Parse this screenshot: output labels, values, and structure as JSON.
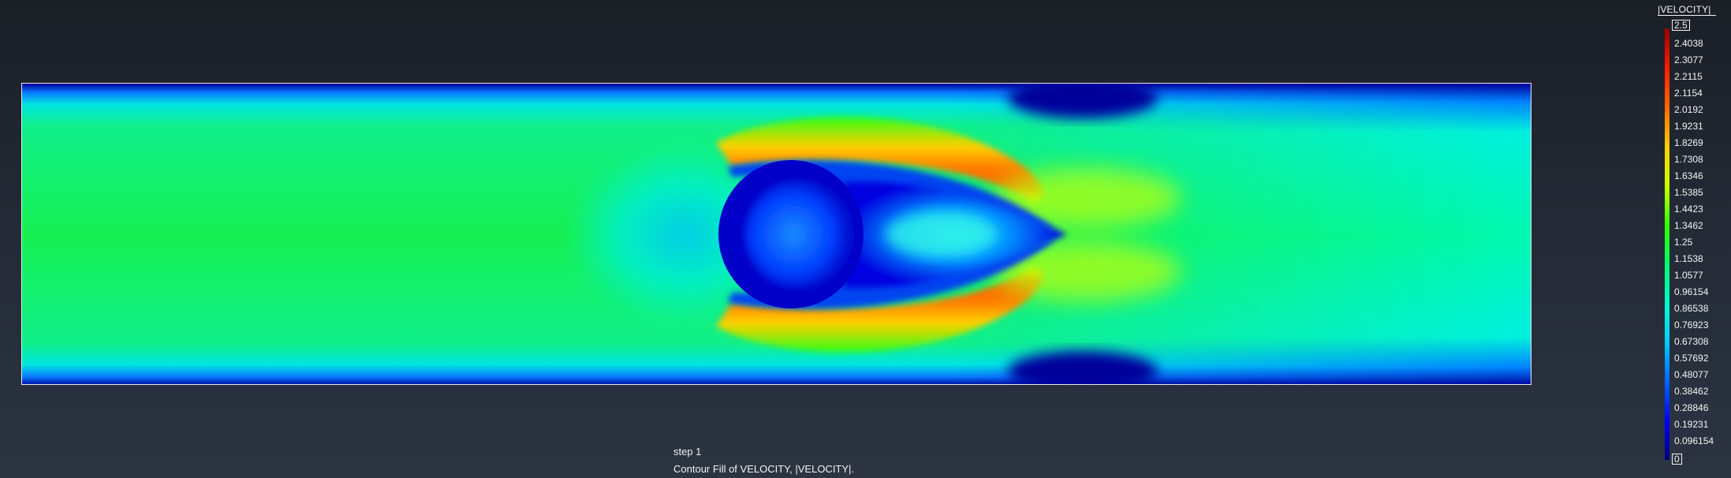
{
  "legend": {
    "title": "|VELOCITY|",
    "max_label": "2.5",
    "min_label": "0",
    "ticks": [
      "2.4038",
      "2.3077",
      "2.2115",
      "2.1154",
      "2.0192",
      "1.9231",
      "1.8269",
      "1.7308",
      "1.6346",
      "1.5385",
      "1.4423",
      "1.3462",
      "1.25",
      "1.1538",
      "1.0577",
      "0.96154",
      "0.86538",
      "0.76923",
      "0.67308",
      "0.57692",
      "0.48077",
      "0.38462",
      "0.28846",
      "0.19231",
      "0.096154"
    ],
    "colormap": [
      "#00007a",
      "#0000ff",
      "#0066ff",
      "#00ccff",
      "#00ffcc",
      "#00ff66",
      "#33ff00",
      "#ccff00",
      "#ffcc00",
      "#ff6600",
      "#ff1a00",
      "#9a0000"
    ]
  },
  "caption": {
    "step": "step 1",
    "description": "Contour Fill of VELOCITY, |VELOCITY|."
  }
}
